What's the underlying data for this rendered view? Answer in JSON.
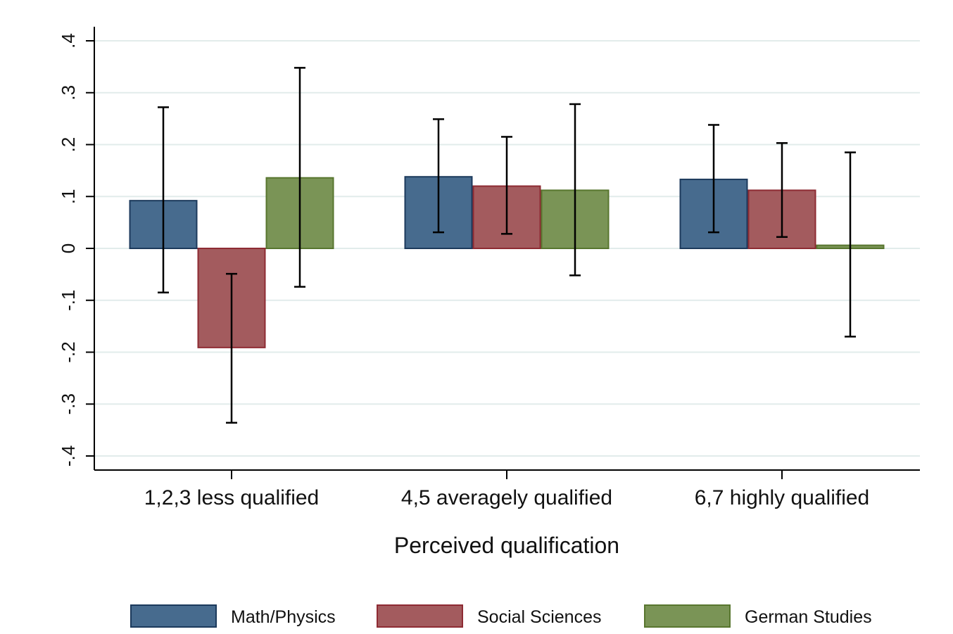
{
  "chart_data": {
    "type": "bar",
    "title": "",
    "xlabel": "Perceived qualification",
    "ylabel": "",
    "ylim": [
      -0.4,
      0.4
    ],
    "yticks": [
      -0.4,
      -0.3,
      -0.2,
      -0.1,
      0,
      0.1,
      0.2,
      0.3,
      0.4
    ],
    "ytick_labels": [
      "-.4",
      "-.3",
      "-.2",
      "-.1",
      "0",
      ".1",
      ".2",
      ".3",
      ".4"
    ],
    "categories": [
      "1,2,3 less qualified",
      "4,5 averagely qualified",
      "6,7 highly qualified"
    ],
    "grid": true,
    "legend_position": "bottom",
    "series": [
      {
        "name": "Math/Physics",
        "color": "#476b8e",
        "edge": "#1c3a5c",
        "values": [
          0.092,
          0.138,
          0.133
        ],
        "ci_low": [
          -0.085,
          0.031,
          0.031
        ],
        "ci_high": [
          0.272,
          0.249,
          0.238
        ]
      },
      {
        "name": "Social Sciences",
        "color": "#a35b5e",
        "edge": "#8e2b33",
        "values": [
          -0.191,
          0.12,
          0.112
        ],
        "ci_low": [
          -0.336,
          0.028,
          0.022
        ],
        "ci_high": [
          -0.049,
          0.215,
          0.203
        ]
      },
      {
        "name": "German Studies",
        "color": "#7a9456",
        "edge": "#58762f",
        "values": [
          0.136,
          0.112,
          0.006
        ],
        "ci_low": [
          -0.074,
          -0.052,
          -0.17
        ],
        "ci_high": [
          0.348,
          0.278,
          0.185
        ]
      }
    ]
  }
}
